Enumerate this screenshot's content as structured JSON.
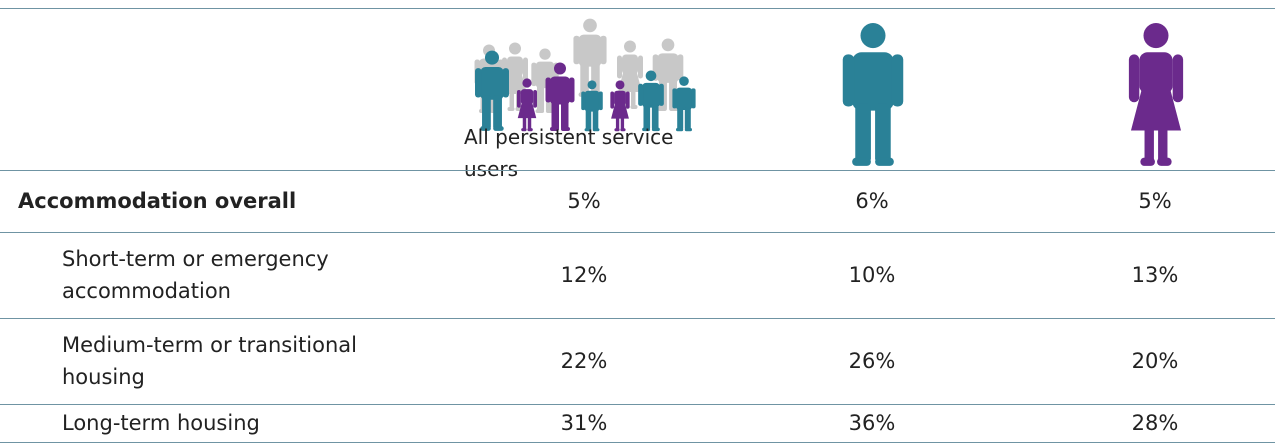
{
  "header": {
    "all_label": "All persistent service users"
  },
  "table": {
    "rows": [
      {
        "label": "Accommodation overall",
        "values": [
          "5%",
          "6%",
          "5%"
        ]
      },
      {
        "label": "Short-term or emergency accommodation",
        "values": [
          "12%",
          "10%",
          "13%"
        ]
      },
      {
        "label": "Medium-term or transitional housing",
        "values": [
          "22%",
          "26%",
          "20%"
        ]
      },
      {
        "label": "Long-term housing",
        "values": [
          "31%",
          "36%",
          "28%"
        ]
      }
    ]
  }
}
